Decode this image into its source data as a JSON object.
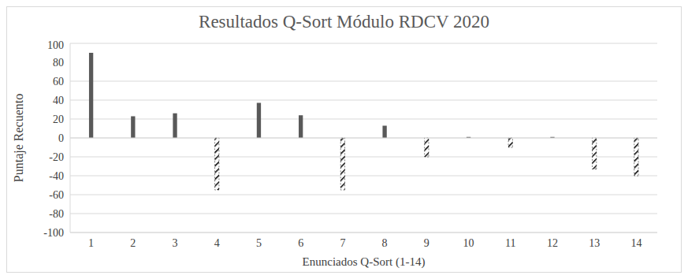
{
  "chart_data": {
    "type": "bar",
    "title": "Resultados Q-Sort Módulo RDCV 2020",
    "x_label": "Enunciados Q-Sort (1-14)",
    "y_label": "Puntaje Recuento",
    "categories": [
      "1",
      "2",
      "3",
      "4",
      "5",
      "6",
      "7",
      "8",
      "9",
      "10",
      "11",
      "12",
      "13",
      "14"
    ],
    "values": [
      90,
      23,
      26,
      -55,
      37,
      24,
      -55,
      13,
      -20,
      1,
      -10,
      1,
      -33,
      -40
    ],
    "colors": [
      "#595959",
      "#595959",
      "#595959",
      "#000000",
      "#595959",
      "#595959",
      "#000000",
      "#595959",
      "#000000",
      "#595959",
      "#000000",
      "#595959",
      "#000000",
      "#000000"
    ],
    "ylim": [
      -100,
      100
    ],
    "yticks": [
      -100,
      -80,
      -60,
      -40,
      -20,
      0,
      20,
      40,
      60,
      80,
      100
    ],
    "grid": true
  }
}
